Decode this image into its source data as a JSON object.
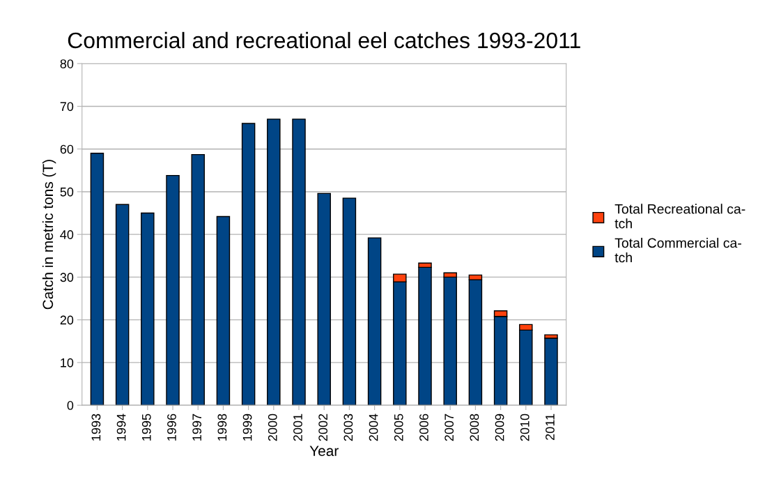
{
  "chart_data": {
    "type": "bar",
    "title": "Commercial and recreational eel catches 1993-2011",
    "xlabel": "Year",
    "ylabel": "Catch in metric tons (T)",
    "categories": [
      "1993",
      "1994",
      "1995",
      "1996",
      "1997",
      "1998",
      "1999",
      "2000",
      "2001",
      "2002",
      "2003",
      "2004",
      "2005",
      "2006",
      "2007",
      "2008",
      "2009",
      "2010",
      "2011"
    ],
    "stacked": true,
    "series": [
      {
        "name": "Total Commercial ca-\ntch",
        "color": "#004586",
        "values": [
          59,
          47,
          45,
          53.8,
          58.7,
          44.2,
          66,
          67,
          67,
          49.6,
          48.5,
          39.2,
          28.9,
          32.3,
          30,
          29.4,
          20.8,
          17.6,
          15.7
        ]
      },
      {
        "name": "Total Recreational ca-\ntch",
        "color": "#ff420e",
        "values": [
          null,
          null,
          null,
          null,
          null,
          null,
          null,
          null,
          null,
          null,
          null,
          null,
          1.8,
          1.0,
          1.0,
          1.1,
          1.3,
          1.3,
          0.8
        ]
      }
    ],
    "ylim": [
      0,
      80
    ],
    "yticks": [
      0,
      10,
      20,
      30,
      40,
      50,
      60,
      70,
      80
    ],
    "grid": "y",
    "legend": "right"
  }
}
